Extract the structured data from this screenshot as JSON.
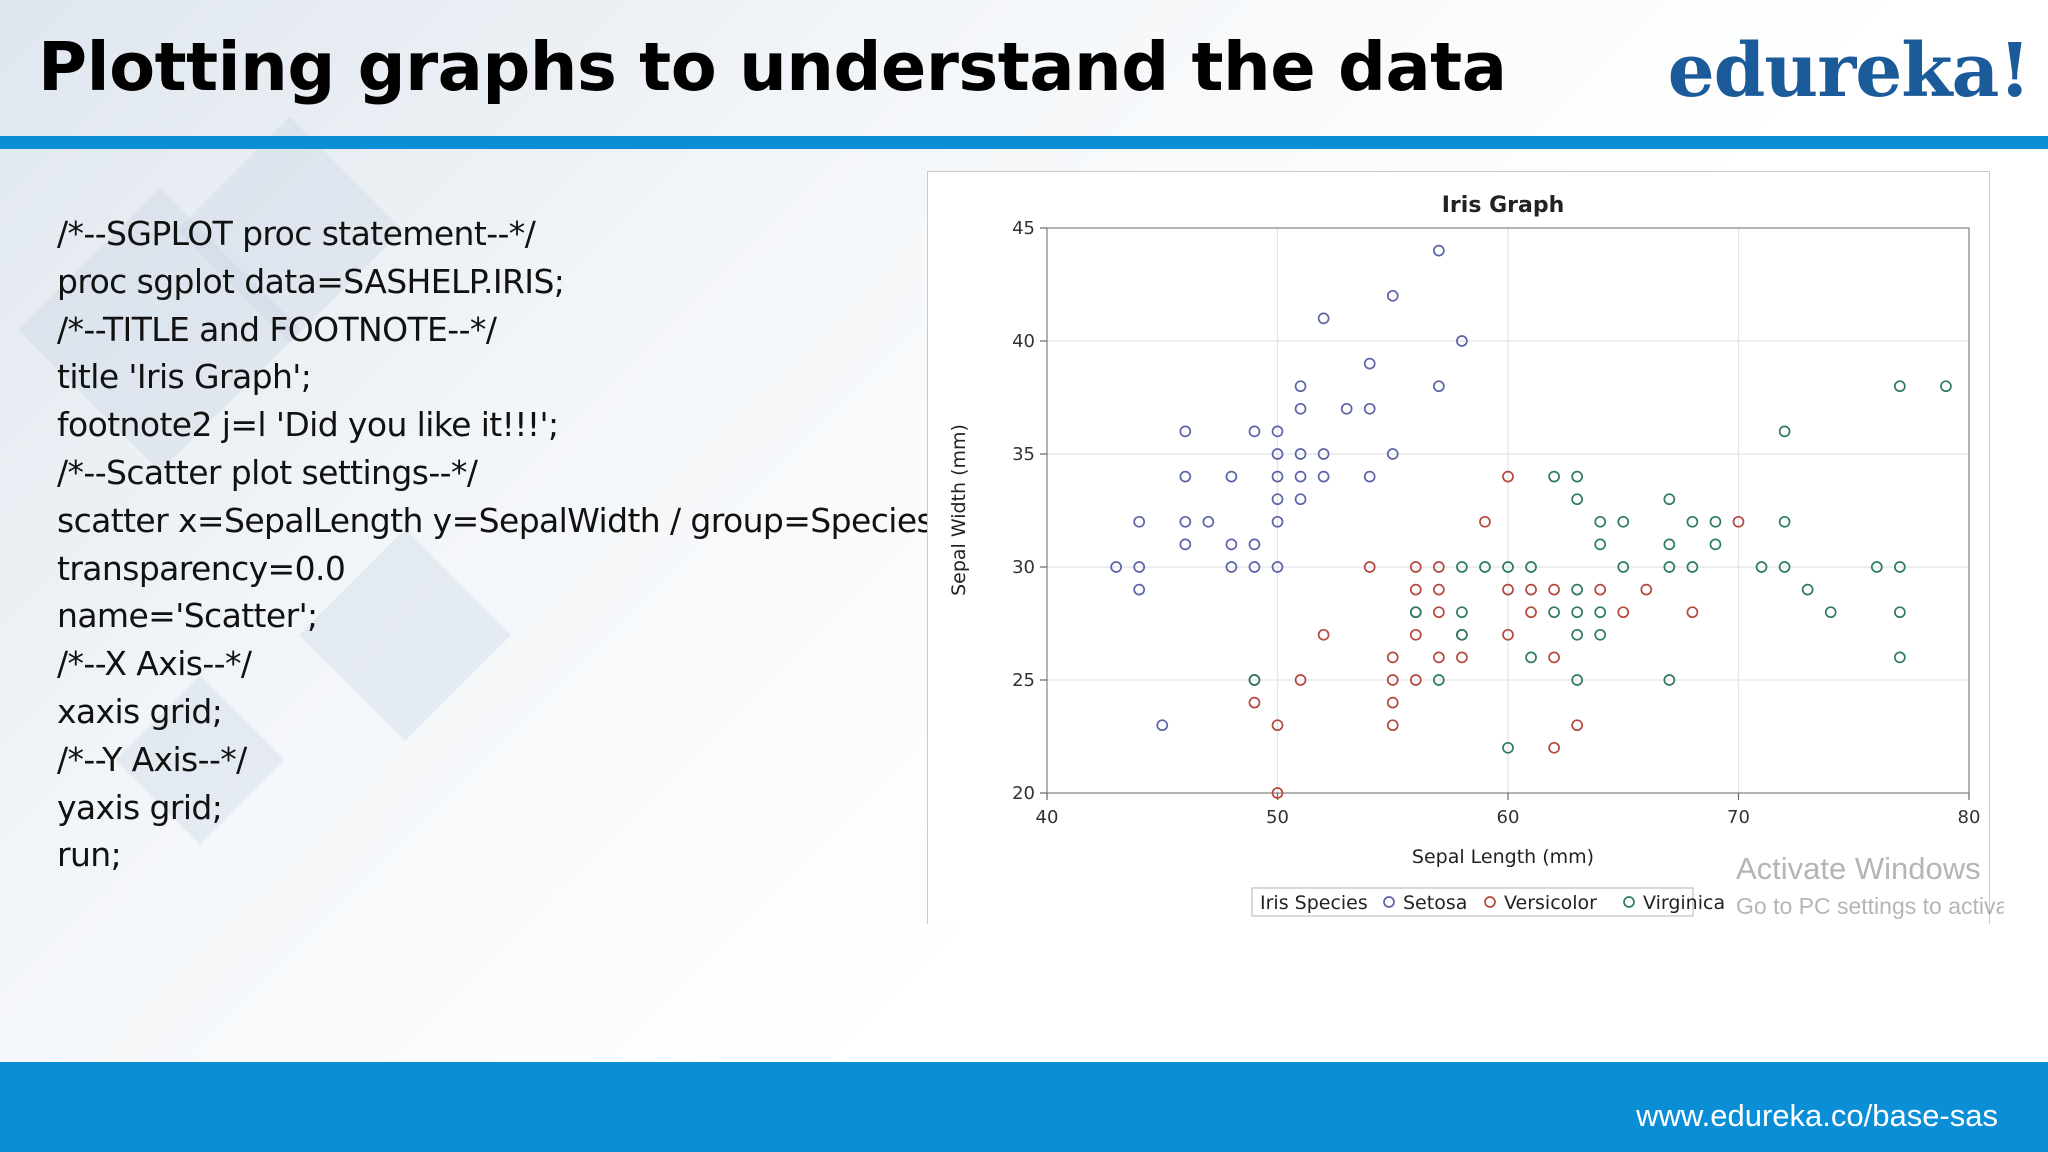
{
  "slide": {
    "title": "Plotting graphs to understand the data",
    "logo": "edureka!",
    "footer_url": "www.edureka.co/base-sas",
    "watermark": [
      "Activate Windows",
      "Go to PC settings to activate Windows."
    ],
    "colors": {
      "accent": "#0a8fd6",
      "logo": "#1b5b9a"
    }
  },
  "code_lines": [
    "/*--SGPLOT proc statement--*/",
    "proc sgplot data=SASHELP.IRIS;",
    "/*--TITLE and FOOTNOTE--*/",
    "title 'Iris Graph';",
    "footnote2 j=l 'Did you like it!!!';",
    "/*--Scatter plot settings--*/",
    "scatter x=SepalLength y=SepalWidth / group=Species",
    "transparency=0.0",
    "name='Scatter';",
    "/*--X Axis--*/",
    "xaxis grid;",
    "/*--Y Axis--*/",
    "yaxis grid;",
    "run;"
  ],
  "chart_data": {
    "type": "scatter",
    "title": "Iris Graph",
    "xlabel": "Sepal Length (mm)",
    "ylabel": "Sepal Width (mm)",
    "xlim": [
      40,
      80
    ],
    "ylim": [
      20,
      45
    ],
    "xticks": [
      40,
      50,
      60,
      70,
      80
    ],
    "yticks": [
      20,
      25,
      30,
      35,
      40,
      45
    ],
    "grid": true,
    "legend": {
      "title": "Iris Species",
      "placement": "bottom"
    },
    "series": [
      {
        "name": "Setosa",
        "color": "#5b64a6",
        "points": [
          [
            57,
            44
          ],
          [
            55,
            42
          ],
          [
            52,
            41
          ],
          [
            58,
            40
          ],
          [
            54,
            39
          ],
          [
            51,
            38
          ],
          [
            57,
            38
          ],
          [
            51,
            37
          ],
          [
            53,
            37
          ],
          [
            54,
            37
          ],
          [
            46,
            36
          ],
          [
            49,
            36
          ],
          [
            50,
            36
          ],
          [
            50,
            35
          ],
          [
            51,
            35
          ],
          [
            52,
            35
          ],
          [
            55,
            35
          ],
          [
            46,
            34
          ],
          [
            48,
            34
          ],
          [
            50,
            34
          ],
          [
            51,
            34
          ],
          [
            52,
            34
          ],
          [
            54,
            34
          ],
          [
            50,
            33
          ],
          [
            51,
            33
          ],
          [
            44,
            32
          ],
          [
            46,
            32
          ],
          [
            47,
            32
          ],
          [
            50,
            32
          ],
          [
            46,
            31
          ],
          [
            48,
            31
          ],
          [
            49,
            31
          ],
          [
            43,
            30
          ],
          [
            44,
            30
          ],
          [
            48,
            30
          ],
          [
            49,
            30
          ],
          [
            50,
            30
          ],
          [
            44,
            29
          ],
          [
            45,
            23
          ]
        ]
      },
      {
        "name": "Versicolor",
        "color": "#b5473d",
        "points": [
          [
            60,
            34
          ],
          [
            59,
            32
          ],
          [
            70,
            32
          ],
          [
            54,
            30
          ],
          [
            56,
            30
          ],
          [
            57,
            30
          ],
          [
            56,
            29
          ],
          [
            57,
            29
          ],
          [
            60,
            29
          ],
          [
            61,
            29
          ],
          [
            62,
            29
          ],
          [
            64,
            29
          ],
          [
            66,
            29
          ],
          [
            56,
            28
          ],
          [
            57,
            28
          ],
          [
            61,
            28
          ],
          [
            65,
            28
          ],
          [
            68,
            28
          ],
          [
            52,
            27
          ],
          [
            56,
            27
          ],
          [
            58,
            27
          ],
          [
            60,
            27
          ],
          [
            55,
            26
          ],
          [
            57,
            26
          ],
          [
            58,
            26
          ],
          [
            62,
            26
          ],
          [
            49,
            25
          ],
          [
            51,
            25
          ],
          [
            55,
            25
          ],
          [
            56,
            25
          ],
          [
            49,
            24
          ],
          [
            55,
            24
          ],
          [
            50,
            23
          ],
          [
            55,
            23
          ],
          [
            63,
            23
          ],
          [
            62,
            22
          ],
          [
            50,
            20
          ]
        ]
      },
      {
        "name": "Virginica",
        "color": "#2c7b62",
        "points": [
          [
            77,
            38
          ],
          [
            79,
            38
          ],
          [
            72,
            36
          ],
          [
            62,
            34
          ],
          [
            63,
            34
          ],
          [
            63,
            33
          ],
          [
            67,
            33
          ],
          [
            64,
            32
          ],
          [
            65,
            32
          ],
          [
            68,
            32
          ],
          [
            69,
            32
          ],
          [
            72,
            32
          ],
          [
            64,
            31
          ],
          [
            67,
            31
          ],
          [
            69,
            31
          ],
          [
            58,
            30
          ],
          [
            59,
            30
          ],
          [
            60,
            30
          ],
          [
            61,
            30
          ],
          [
            65,
            30
          ],
          [
            67,
            30
          ],
          [
            68,
            30
          ],
          [
            71,
            30
          ],
          [
            72,
            30
          ],
          [
            76,
            30
          ],
          [
            77,
            30
          ],
          [
            63,
            29
          ],
          [
            73,
            29
          ],
          [
            56,
            28
          ],
          [
            58,
            28
          ],
          [
            62,
            28
          ],
          [
            63,
            28
          ],
          [
            64,
            28
          ],
          [
            74,
            28
          ],
          [
            77,
            28
          ],
          [
            58,
            27
          ],
          [
            63,
            27
          ],
          [
            64,
            27
          ],
          [
            61,
            26
          ],
          [
            77,
            26
          ],
          [
            49,
            25
          ],
          [
            57,
            25
          ],
          [
            63,
            25
          ],
          [
            67,
            25
          ],
          [
            60,
            22
          ]
        ]
      }
    ]
  }
}
